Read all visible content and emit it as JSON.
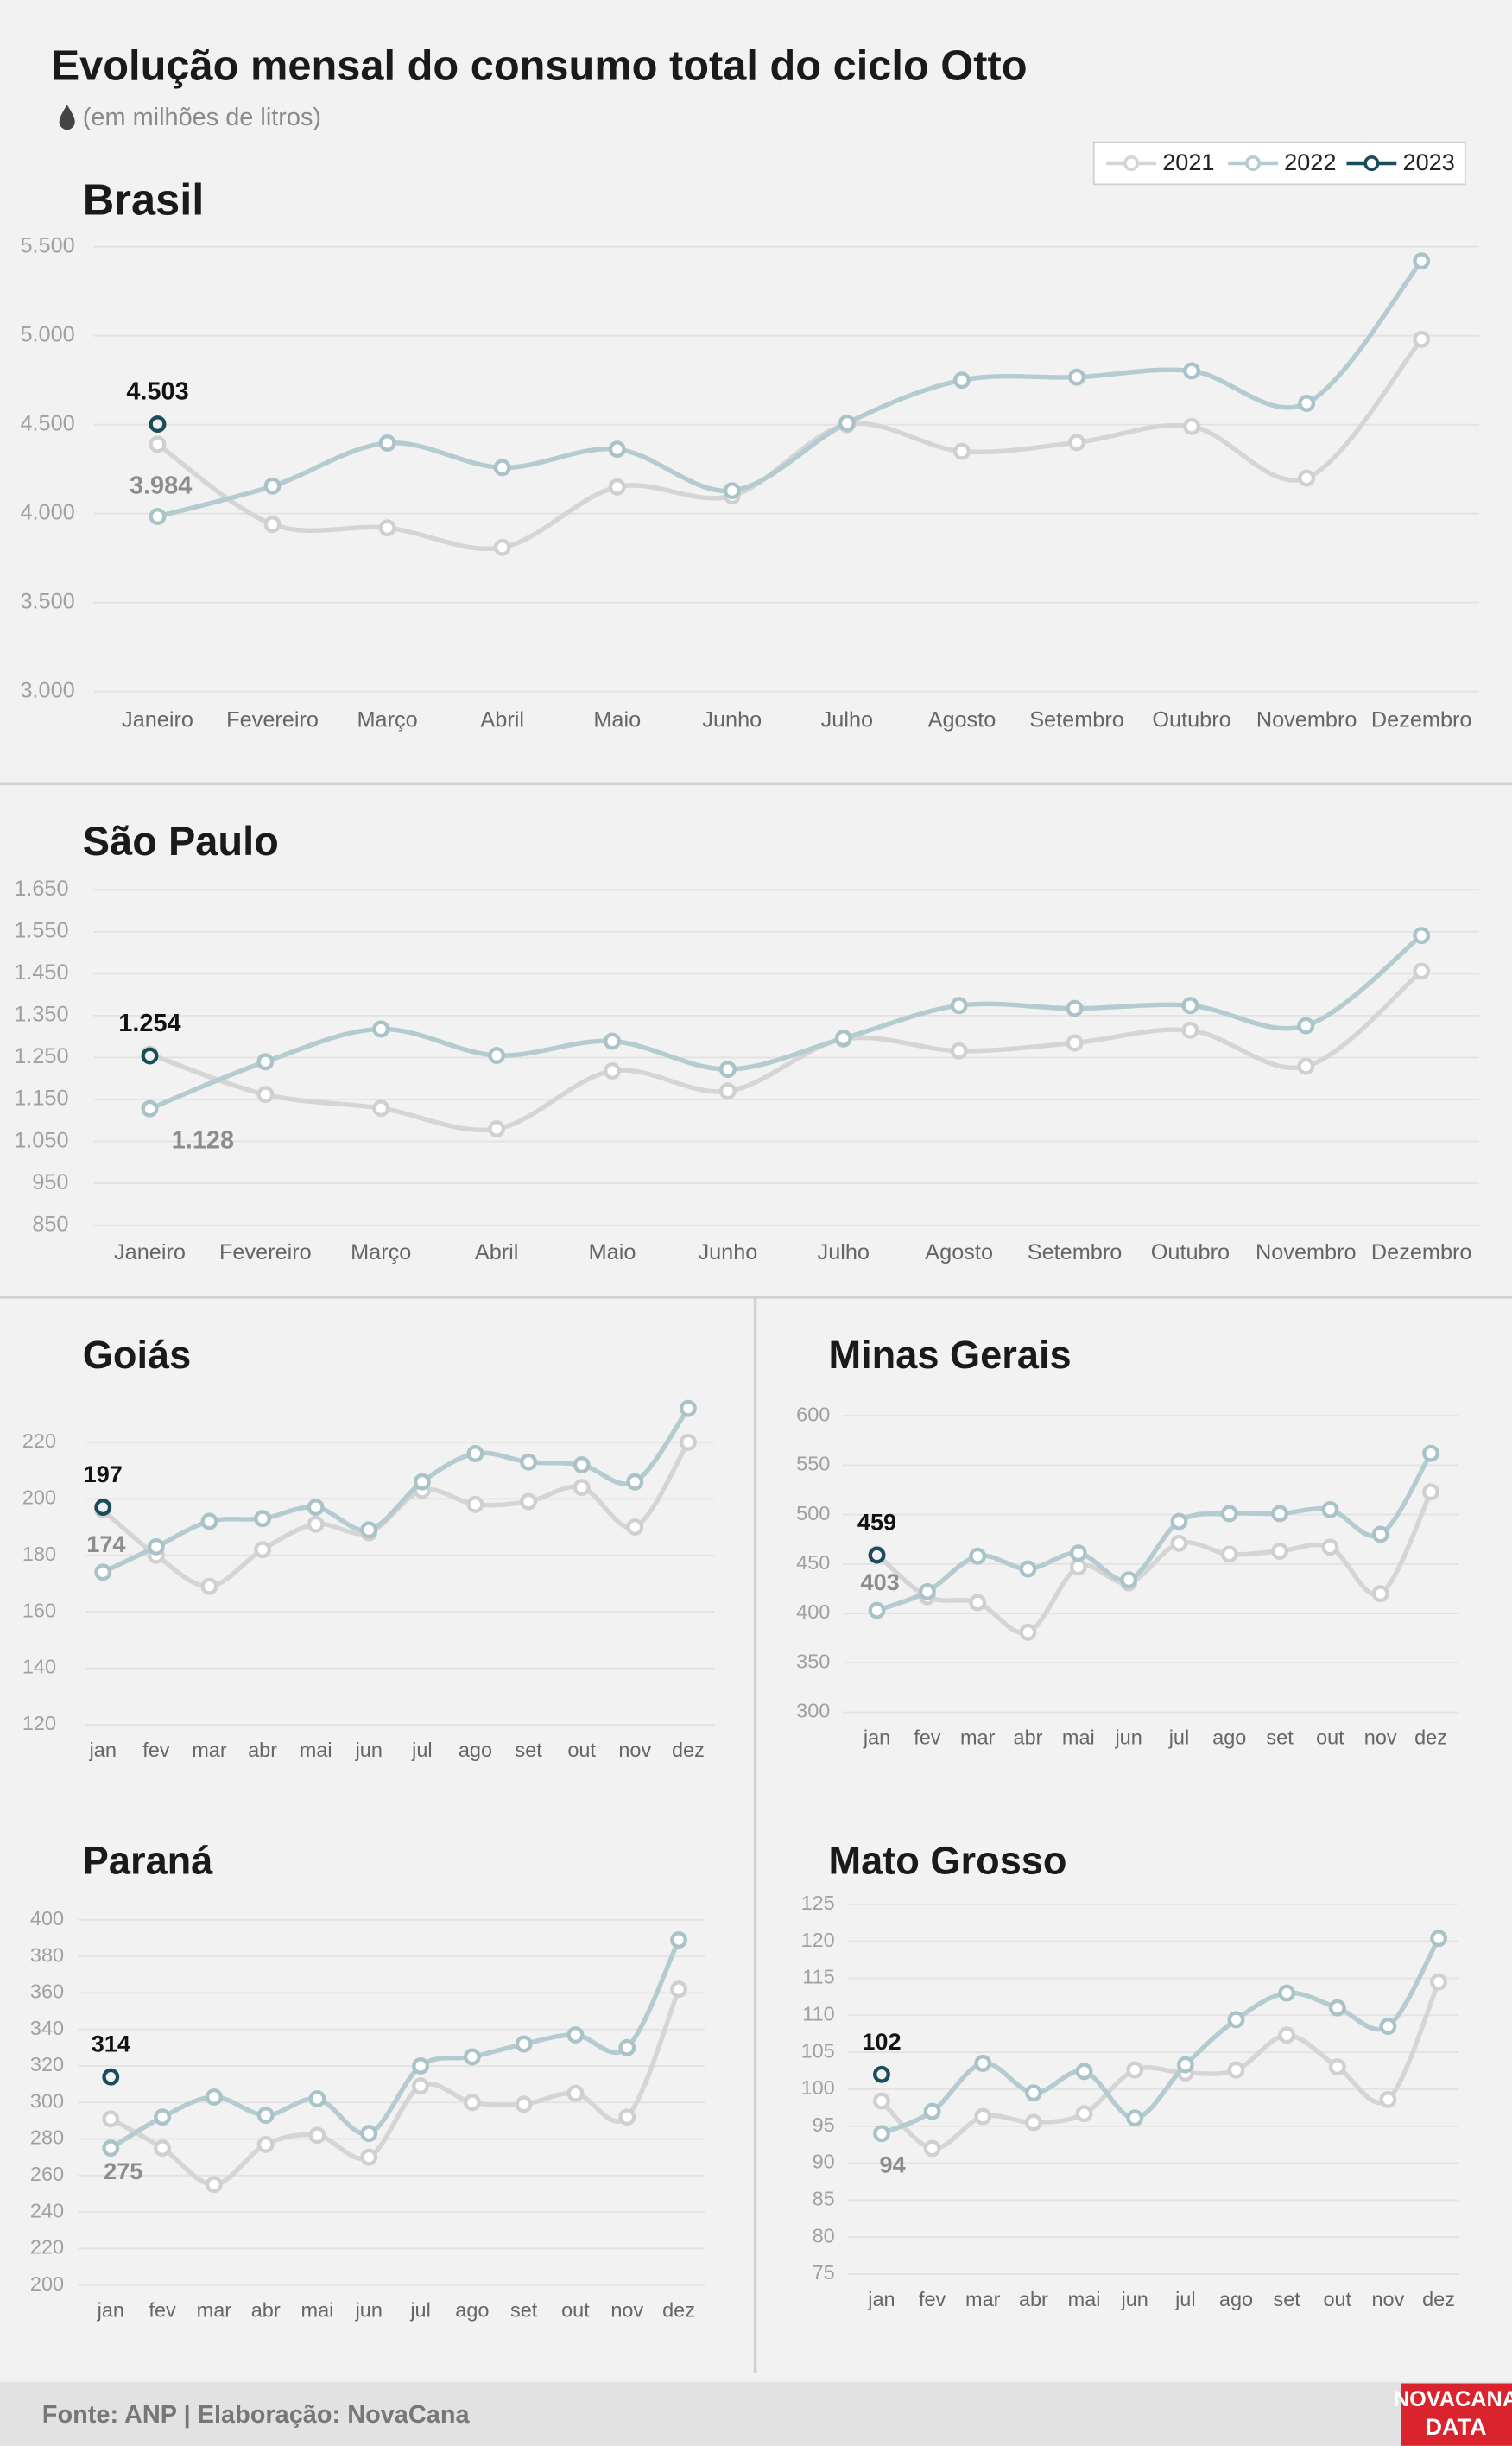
{
  "title": "Evolução mensal do consumo total do ciclo Otto",
  "subtitle": "(em milhões de litros)",
  "legend": [
    {
      "name": "2021",
      "color": "#d5d5d5"
    },
    {
      "name": "2022",
      "color": "#b4ccd1"
    },
    {
      "name": "2023",
      "color": "#1b4c5b"
    }
  ],
  "source": "Fonte: ANP | Elaboração: NovaCana",
  "logo": [
    "NOVACANA",
    "DATA"
  ],
  "chart_data": [
    {
      "type": "line",
      "title": "Brasil",
      "categories": [
        "Janeiro",
        "Fevereiro",
        "Março",
        "Abril",
        "Maio",
        "Junho",
        "Julho",
        "Agosto",
        "Setembro",
        "Outubro",
        "Novembro",
        "Dezembro"
      ],
      "ylim": [
        3000,
        5500
      ],
      "yticks": [
        {
          "value": 3000,
          "label": "3.000"
        },
        {
          "value": 3500,
          "label": "3.500"
        },
        {
          "value": 4000,
          "label": "4.000"
        },
        {
          "value": 4500,
          "label": "4.500"
        },
        {
          "value": 5000,
          "label": "5.000"
        },
        {
          "value": 5500,
          "label": "5.500"
        }
      ],
      "grid": true,
      "series": [
        {
          "values": [
            4390,
            3940,
            3920,
            3810,
            4150,
            4100,
            4500,
            4350,
            4400,
            4490,
            4200,
            4980
          ]
        },
        {
          "values": [
            3984,
            4155,
            4397,
            4259,
            4362,
            4129,
            4509,
            4750,
            4767,
            4802,
            4620,
            5420
          ],
          "value_labels": [
            "3.984",
            null,
            null,
            null,
            null,
            null,
            null,
            null,
            null,
            null,
            null,
            null
          ]
        },
        {
          "values": [
            4503,
            null,
            null,
            null,
            null,
            null,
            null,
            null,
            null,
            null,
            null,
            null
          ],
          "value_labels": [
            "4.503",
            null,
            null,
            null,
            null,
            null,
            null,
            null,
            null,
            null,
            null,
            null
          ]
        }
      ]
    },
    {
      "type": "line",
      "title": "São Paulo",
      "categories": [
        "Janeiro",
        "Fevereiro",
        "Março",
        "Abril",
        "Maio",
        "Junho",
        "Julho",
        "Agosto",
        "Setembro",
        "Outubro",
        "Novembro",
        "Dezembro"
      ],
      "ylim": [
        850,
        1650
      ],
      "yticks": [
        850,
        950,
        {
          "value": 1050,
          "label": "1.050"
        },
        {
          "value": 1150,
          "label": "1.150"
        },
        {
          "value": 1250,
          "label": "1.250"
        },
        {
          "value": 1350,
          "label": "1.350"
        },
        {
          "value": 1450,
          "label": "1.450"
        },
        {
          "value": 1550,
          "label": "1.550"
        },
        {
          "value": 1650,
          "label": "1.650"
        }
      ],
      "grid": true,
      "series": [
        {
          "values": [
            1258,
            1162,
            1129,
            1080,
            1218,
            1170,
            1294,
            1266,
            1285,
            1315,
            1229,
            1456
          ]
        },
        {
          "values": [
            1128,
            1240,
            1318,
            1255,
            1289,
            1222,
            1296,
            1374,
            1367,
            1374,
            1326,
            1541
          ],
          "value_labels": [
            "1.128",
            null,
            null,
            null,
            null,
            null,
            null,
            null,
            null,
            null,
            null,
            null
          ]
        },
        {
          "values": [
            1254,
            null,
            null,
            null,
            null,
            null,
            null,
            null,
            null,
            null,
            null,
            null
          ],
          "value_labels": [
            "1.254",
            null,
            null,
            null,
            null,
            null,
            null,
            null,
            null,
            null,
            null,
            null
          ]
        }
      ]
    },
    {
      "type": "line",
      "title": "Goiás",
      "categories": [
        "jan",
        "fev",
        "mar",
        "abr",
        "mai",
        "jun",
        "jul",
        "ago",
        "set",
        "out",
        "nov",
        "dez"
      ],
      "ylim": [
        120,
        220
      ],
      "yticks": [
        120,
        140,
        160,
        180,
        200,
        220
      ],
      "grid": true,
      "series": [
        {
          "values": [
            196,
            180,
            169,
            182,
            191,
            188,
            203,
            198,
            199,
            204,
            190,
            220
          ]
        },
        {
          "values": [
            174,
            183,
            192,
            193,
            197,
            189,
            206,
            216,
            213,
            212,
            206,
            232
          ]
        },
        {
          "values": [
            197,
            null,
            null,
            null,
            null,
            null,
            null,
            null,
            null,
            null,
            null,
            null
          ]
        }
      ]
    },
    {
      "type": "line",
      "title": "Minas Gerais",
      "categories": [
        "jan",
        "fev",
        "mar",
        "abr",
        "mai",
        "jun",
        "jul",
        "ago",
        "set",
        "out",
        "nov",
        "dez"
      ],
      "ylim": [
        300,
        600
      ],
      "yticks": [
        300,
        350,
        400,
        450,
        500,
        550,
        600
      ],
      "grid": true,
      "series": [
        {
          "values": [
            460,
            417,
            411,
            381,
            447,
            431,
            471,
            460,
            463,
            467,
            420,
            523
          ]
        },
        {
          "values": [
            403,
            422,
            458,
            445,
            461,
            434,
            493,
            501,
            501,
            505,
            480,
            562
          ]
        },
        {
          "values": [
            459,
            null,
            null,
            null,
            null,
            null,
            null,
            null,
            null,
            null,
            null,
            null
          ]
        }
      ]
    },
    {
      "type": "line",
      "title": "Paraná",
      "categories": [
        "jan",
        "fev",
        "mar",
        "abr",
        "mai",
        "jun",
        "jul",
        "ago",
        "set",
        "out",
        "nov",
        "dez"
      ],
      "ylim": [
        200,
        400
      ],
      "yticks": [
        200,
        220,
        240,
        260,
        280,
        300,
        320,
        340,
        360,
        380,
        400
      ],
      "grid": true,
      "series": [
        {
          "values": [
            291,
            275,
            255,
            277,
            282,
            270,
            309,
            300,
            299,
            305,
            292,
            362
          ]
        },
        {
          "values": [
            275,
            292,
            303,
            293,
            302,
            283,
            320,
            325,
            332,
            337,
            330,
            389
          ]
        },
        {
          "values": [
            314,
            null,
            null,
            null,
            null,
            null,
            null,
            null,
            null,
            null,
            null,
            null
          ]
        }
      ]
    },
    {
      "type": "line",
      "title": "Mato Grosso",
      "categories": [
        "jan",
        "fev",
        "mar",
        "abr",
        "mai",
        "jun",
        "jul",
        "ago",
        "set",
        "out",
        "nov",
        "dez"
      ],
      "ylim": [
        75,
        125
      ],
      "yticks": [
        75,
        80,
        85,
        90,
        95,
        100,
        105,
        110,
        115,
        120,
        125
      ],
      "grid": true,
      "series": [
        {
          "values": [
            98.4,
            92,
            96.3,
            95.5,
            96.7,
            102.6,
            102.2,
            102.6,
            107.3,
            103,
            98.6,
            114.5
          ]
        },
        {
          "values": [
            94,
            97,
            103.5,
            99.5,
            102.4,
            96.1,
            103.3,
            109.4,
            113,
            111,
            108.5,
            120.4
          ]
        },
        {
          "values": [
            102,
            null,
            null,
            null,
            null,
            null,
            null,
            null,
            null,
            null,
            null,
            null
          ]
        }
      ]
    }
  ]
}
